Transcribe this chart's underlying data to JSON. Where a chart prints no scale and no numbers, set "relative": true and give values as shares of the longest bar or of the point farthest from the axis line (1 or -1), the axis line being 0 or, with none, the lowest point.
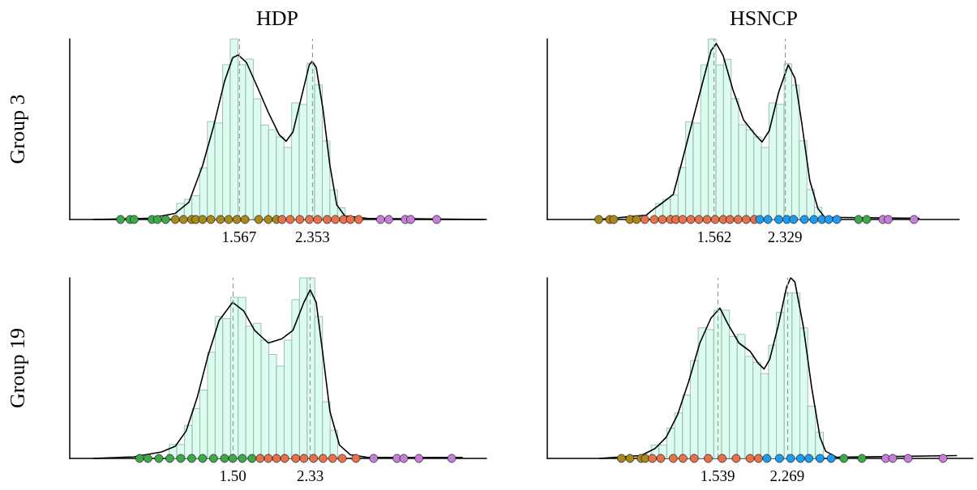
{
  "chart_data": [
    {
      "type": "histogram",
      "title": "HDP",
      "ylabel": "Group 3",
      "relative": true,
      "color": "#dcfcf0",
      "tick_labels": "x",
      "marker": "circle",
      "bins": [
        0.897,
        0.979,
        1.061,
        1.144,
        1.226,
        1.308,
        1.39,
        1.472,
        1.555,
        1.637,
        1.719,
        1.801,
        1.883,
        1.966,
        2.048,
        2.13,
        2.212,
        2.294,
        2.377,
        2.459,
        2.541,
        2.623,
        2.705
      ],
      "values": [
        0.089,
        0.112,
        0.132,
        0.286,
        0.542,
        0.534,
        0.857,
        1,
        0.857,
        0.888,
        0.668,
        0.523,
        0.497,
        0.457,
        0.399,
        0.646,
        0.637,
        0.865,
        0.745,
        0.435,
        0.163,
        0.065
      ],
      "xlim": [
        -0.25,
        4.22
      ],
      "xticks": [
        1.567,
        2.353
      ],
      "ref_lines": [
        {
          "axis": "x",
          "value": 1.567,
          "label": null,
          "color": "#999999",
          "line_style": "dashed"
        },
        {
          "axis": "x",
          "value": 2.353,
          "label": null,
          "color": "#999999",
          "line_style": "dashed"
        }
      ],
      "series": [
        {
          "type": "line",
          "marker": "none",
          "color": "#000000",
          "x": [
            0.001,
            0.588,
            0.882,
            1.029,
            1.175,
            1.293,
            1.41,
            1.498,
            1.557,
            1.645,
            1.763,
            1.88,
            1.997,
            2.071,
            2.144,
            2.232,
            2.32,
            2.35,
            2.394,
            2.467,
            2.541,
            2.614,
            2.702,
            2.937,
            4.199
          ],
          "values": [
            0,
            0.006,
            0.034,
            0.096,
            0.298,
            0.516,
            0.764,
            0.896,
            0.911,
            0.87,
            0.733,
            0.593,
            0.469,
            0.433,
            0.484,
            0.671,
            0.857,
            0.876,
            0.842,
            0.609,
            0.298,
            0.081,
            0.019,
            0.006,
            0
          ]
        },
        {
          "type": "scatter",
          "color": "#3ea84b",
          "x": [
            0.295,
            0.397,
            0.441,
            0.632,
            0.691,
            0.779
          ],
          "values": [
            0,
            0,
            0,
            0,
            0,
            0
          ]
        },
        {
          "type": "scatter",
          "color": "#a8891a",
          "x": [
            0.882,
            0.97,
            1.058,
            1.102,
            1.175,
            1.263,
            1.366,
            1.454,
            1.542,
            1.63,
            1.777,
            1.88,
            1.968
          ],
          "values": [
            0,
            0,
            0,
            0,
            0,
            0,
            0,
            0,
            0,
            0,
            0,
            0,
            0
          ]
        },
        {
          "type": "scatter",
          "color": "#e8704a",
          "x": [
            2.027,
            2.115,
            2.218,
            2.32,
            2.409,
            2.511,
            2.599,
            2.687,
            2.761,
            2.849
          ],
          "values": [
            0,
            0,
            0,
            0,
            0,
            0,
            0,
            0,
            0,
            0
          ]
        },
        {
          "type": "scatter",
          "color": "#c77ed8",
          "x": [
            3.084,
            3.172,
            3.348,
            3.407,
            3.686
          ],
          "values": [
            0,
            0,
            0,
            0,
            0
          ]
        }
      ]
    },
    {
      "type": "histogram",
      "title": "HSNCP",
      "relative": true,
      "color": "#dcfcf0",
      "tick_labels": "x",
      "marker": "circle",
      "bins": [
        0.923,
        1.005,
        1.087,
        1.17,
        1.252,
        1.334,
        1.416,
        1.498,
        1.581,
        1.663,
        1.745,
        1.827,
        1.909,
        1.992,
        2.074,
        2.156,
        2.238,
        2.32,
        2.403,
        2.485,
        2.567,
        2.649,
        2.731
      ],
      "values": [
        0.089,
        0.112,
        0.135,
        0.288,
        0.541,
        0.534,
        0.856,
        1,
        0.856,
        0.887,
        0.669,
        0.525,
        0.497,
        0.457,
        0.399,
        0.646,
        0.638,
        0.863,
        0.744,
        0.436,
        0.166,
        0.067
      ],
      "xlim": [
        -0.25,
        4.22
      ],
      "xticks": [
        1.562,
        2.329
      ],
      "ref_lines": [
        {
          "axis": "x",
          "value": 1.562,
          "label": null,
          "color": "#999999",
          "line_style": "dashed"
        },
        {
          "axis": "x",
          "value": 2.329,
          "label": null,
          "color": "#999999",
          "line_style": "dashed"
        }
      ],
      "series": [
        {
          "type": "line",
          "marker": "none",
          "color": "#000000",
          "x": [
            0.295,
            0.823,
            0.882,
            0.999,
            1.117,
            1.205,
            1.322,
            1.44,
            1.528,
            1.586,
            1.66,
            1.763,
            1.88,
            1.997,
            2.08,
            2.159,
            2.262,
            2.365,
            2.438,
            2.511,
            2.599,
            2.687,
            2.761,
            3.789
          ],
          "values": [
            0,
            0.023,
            0.049,
            0.092,
            0.138,
            0.307,
            0.537,
            0.767,
            0.936,
            0.974,
            0.905,
            0.721,
            0.552,
            0.475,
            0.429,
            0.491,
            0.706,
            0.856,
            0.782,
            0.537,
            0.215,
            0.061,
            0.012,
            0.006
          ]
        },
        {
          "type": "scatter",
          "color": "#a8891a",
          "x": [
            0.309,
            0.427,
            0.471,
            0.647,
            0.72
          ],
          "values": [
            0,
            0,
            0,
            0,
            0
          ]
        },
        {
          "type": "scatter",
          "color": "#e8704a",
          "x": [
            0.808,
            0.911,
            0.999,
            1.087,
            1.146,
            1.219,
            1.307,
            1.396,
            1.484,
            1.572,
            1.66,
            1.733,
            1.821,
            1.909,
            1.997
          ],
          "values": [
            0,
            0,
            0,
            0,
            0,
            0,
            0,
            0,
            0,
            0,
            0,
            0,
            0,
            0,
            0
          ]
        },
        {
          "type": "scatter",
          "color": "#1c9cf0",
          "x": [
            2.056,
            2.144,
            2.262,
            2.35,
            2.423,
            2.541,
            2.643,
            2.731,
            2.805,
            2.893
          ],
          "values": [
            0,
            0,
            0,
            0,
            0,
            0,
            0,
            0,
            0,
            0
          ]
        },
        {
          "type": "scatter",
          "color": "#3ea84b",
          "x": [
            3.128,
            3.216
          ],
          "values": [
            0,
            0
          ]
        },
        {
          "type": "scatter",
          "color": "#c77ed8",
          "x": [
            3.392,
            3.451,
            3.73
          ],
          "values": [
            0,
            0,
            0
          ]
        }
      ]
    },
    {
      "type": "histogram",
      "ylabel": "Group 19",
      "relative": true,
      "color": "#dcfcf0",
      "tick_labels": "x",
      "marker": "circle",
      "bins": [
        0.817,
        0.899,
        0.981,
        1.064,
        1.146,
        1.228,
        1.31,
        1.392,
        1.475,
        1.557,
        1.639,
        1.721,
        1.803,
        1.886,
        1.968,
        2.05,
        2.132,
        2.214,
        2.297,
        2.379,
        2.461,
        2.543,
        2.625
      ],
      "values": [
        0.077,
        0.077,
        0.183,
        0.276,
        0.378,
        0.588,
        0.786,
        0.774,
        0.892,
        0.892,
        0.732,
        0.748,
        0.655,
        0.576,
        0.511,
        0.655,
        0.879,
        1,
        1,
        0.786,
        0.314,
        0.156
      ],
      "xlim": [
        -0.25,
        4.22
      ],
      "xticks": [
        {
          "value": 1.5,
          "label": "1.50"
        },
        2.33
      ],
      "ref_lines": [
        {
          "axis": "x",
          "value": 1.5,
          "label": null,
          "color": "#999999",
          "line_style": "dashed"
        },
        {
          "axis": "x",
          "value": 2.33,
          "label": null,
          "color": "#999999",
          "line_style": "dashed"
        }
      ],
      "series": [
        {
          "type": "line",
          "marker": "none",
          "color": "#000000",
          "x": [
            0.001,
            0.441,
            0.735,
            0.882,
            0.999,
            1.117,
            1.234,
            1.352,
            1.498,
            1.616,
            1.733,
            1.88,
            2.027,
            2.144,
            2.262,
            2.329,
            2.394,
            2.467,
            2.541,
            2.643,
            2.761,
            2.937,
            3.965
          ],
          "values": [
            0,
            0.009,
            0.036,
            0.067,
            0.152,
            0.337,
            0.57,
            0.763,
            0.864,
            0.817,
            0.709,
            0.639,
            0.663,
            0.709,
            0.864,
            0.933,
            0.864,
            0.57,
            0.26,
            0.074,
            0.02,
            0.006,
            0.005
          ]
        },
        {
          "type": "scatter",
          "color": "#3ea84b",
          "x": [
            0.5,
            0.588,
            0.706,
            0.823,
            0.941,
            1.058,
            1.175,
            1.293,
            1.41,
            1.498,
            1.601,
            1.704
          ],
          "values": [
            0,
            0,
            0,
            0,
            0,
            0,
            0,
            0,
            0,
            0,
            0,
            0
          ]
        },
        {
          "type": "scatter",
          "color": "#e8704a",
          "x": [
            1.792,
            1.88,
            1.968,
            2.056,
            2.174,
            2.262,
            2.365,
            2.467,
            2.57,
            2.673,
            2.82
          ],
          "values": [
            0,
            0,
            0,
            0,
            0,
            0,
            0,
            0,
            0,
            0,
            0
          ]
        },
        {
          "type": "scatter",
          "color": "#c77ed8",
          "x": [
            3.01,
            3.26,
            3.333,
            3.495,
            3.847
          ],
          "values": [
            0,
            0,
            0,
            0,
            0
          ]
        }
      ]
    },
    {
      "type": "histogram",
      "relative": true,
      "color": "#dcfcf0",
      "tick_labels": "x",
      "marker": "circle",
      "bins": [
        0.841,
        0.923,
        1.005,
        1.088,
        1.17,
        1.252,
        1.334,
        1.416,
        1.499,
        1.581,
        1.663,
        1.745,
        1.827,
        1.91,
        1.992,
        2.074,
        2.156,
        2.238,
        2.321,
        2.403,
        2.485,
        2.567,
        2.649
      ],
      "values": [
        0.074,
        0.074,
        0.168,
        0.252,
        0.351,
        0.542,
        0.723,
        0.713,
        0.821,
        0.821,
        0.675,
        0.687,
        0.565,
        0.532,
        0.47,
        0.627,
        0.809,
        0.916,
        0.916,
        0.723,
        0.29,
        0.145
      ],
      "xlim": [
        -0.25,
        4.22
      ],
      "xticks": [
        1.539,
        2.269
      ],
      "ref_lines": [
        {
          "axis": "x",
          "value": 1.539,
          "label": null,
          "color": "#999999",
          "line_style": "dashed"
        },
        {
          "axis": "x",
          "value": 2.269,
          "label": null,
          "color": "#999999",
          "line_style": "dashed"
        }
      ],
      "series": [
        {
          "type": "line",
          "marker": "none",
          "color": "#000000",
          "x": [
            0.295,
            0.735,
            0.882,
            0.999,
            1.117,
            1.234,
            1.352,
            1.469,
            1.563,
            1.645,
            1.763,
            1.88,
            1.968,
            2.027,
            2.085,
            2.174,
            2.262,
            2.306,
            2.35,
            2.438,
            2.526,
            2.614,
            2.673,
            2.79,
            4.053
          ],
          "values": [
            0,
            0.016,
            0.055,
            0.117,
            0.24,
            0.424,
            0.639,
            0.777,
            0.832,
            0.746,
            0.639,
            0.593,
            0.525,
            0.495,
            0.547,
            0.732,
            0.947,
            1,
            0.977,
            0.732,
            0.394,
            0.117,
            0.04,
            0.006,
            0.016
          ]
        },
        {
          "type": "scatter",
          "color": "#a8891a",
          "x": [
            0.529,
            0.618,
            0.735,
            0.779
          ],
          "values": [
            0,
            0,
            0,
            0
          ]
        },
        {
          "type": "scatter",
          "color": "#e8704a",
          "x": [
            0.853,
            0.941,
            1.073,
            1.175,
            1.293,
            1.44,
            1.586,
            1.733,
            1.88,
            1.968
          ],
          "values": [
            0,
            0,
            0,
            0,
            0,
            0,
            0,
            0,
            0,
            0
          ]
        },
        {
          "type": "scatter",
          "color": "#1c9cf0",
          "x": [
            2.056,
            2.188,
            2.306,
            2.409,
            2.497,
            2.614,
            2.731
          ],
          "values": [
            0,
            0,
            0,
            0,
            0,
            0,
            0
          ]
        },
        {
          "type": "scatter",
          "color": "#3ea84b",
          "x": [
            2.864,
            3.054
          ],
          "values": [
            0,
            0
          ]
        },
        {
          "type": "scatter",
          "color": "#c77ed8",
          "x": [
            3.304,
            3.377,
            3.539,
            3.906
          ],
          "values": [
            0,
            0,
            0,
            0
          ]
        }
      ]
    }
  ]
}
